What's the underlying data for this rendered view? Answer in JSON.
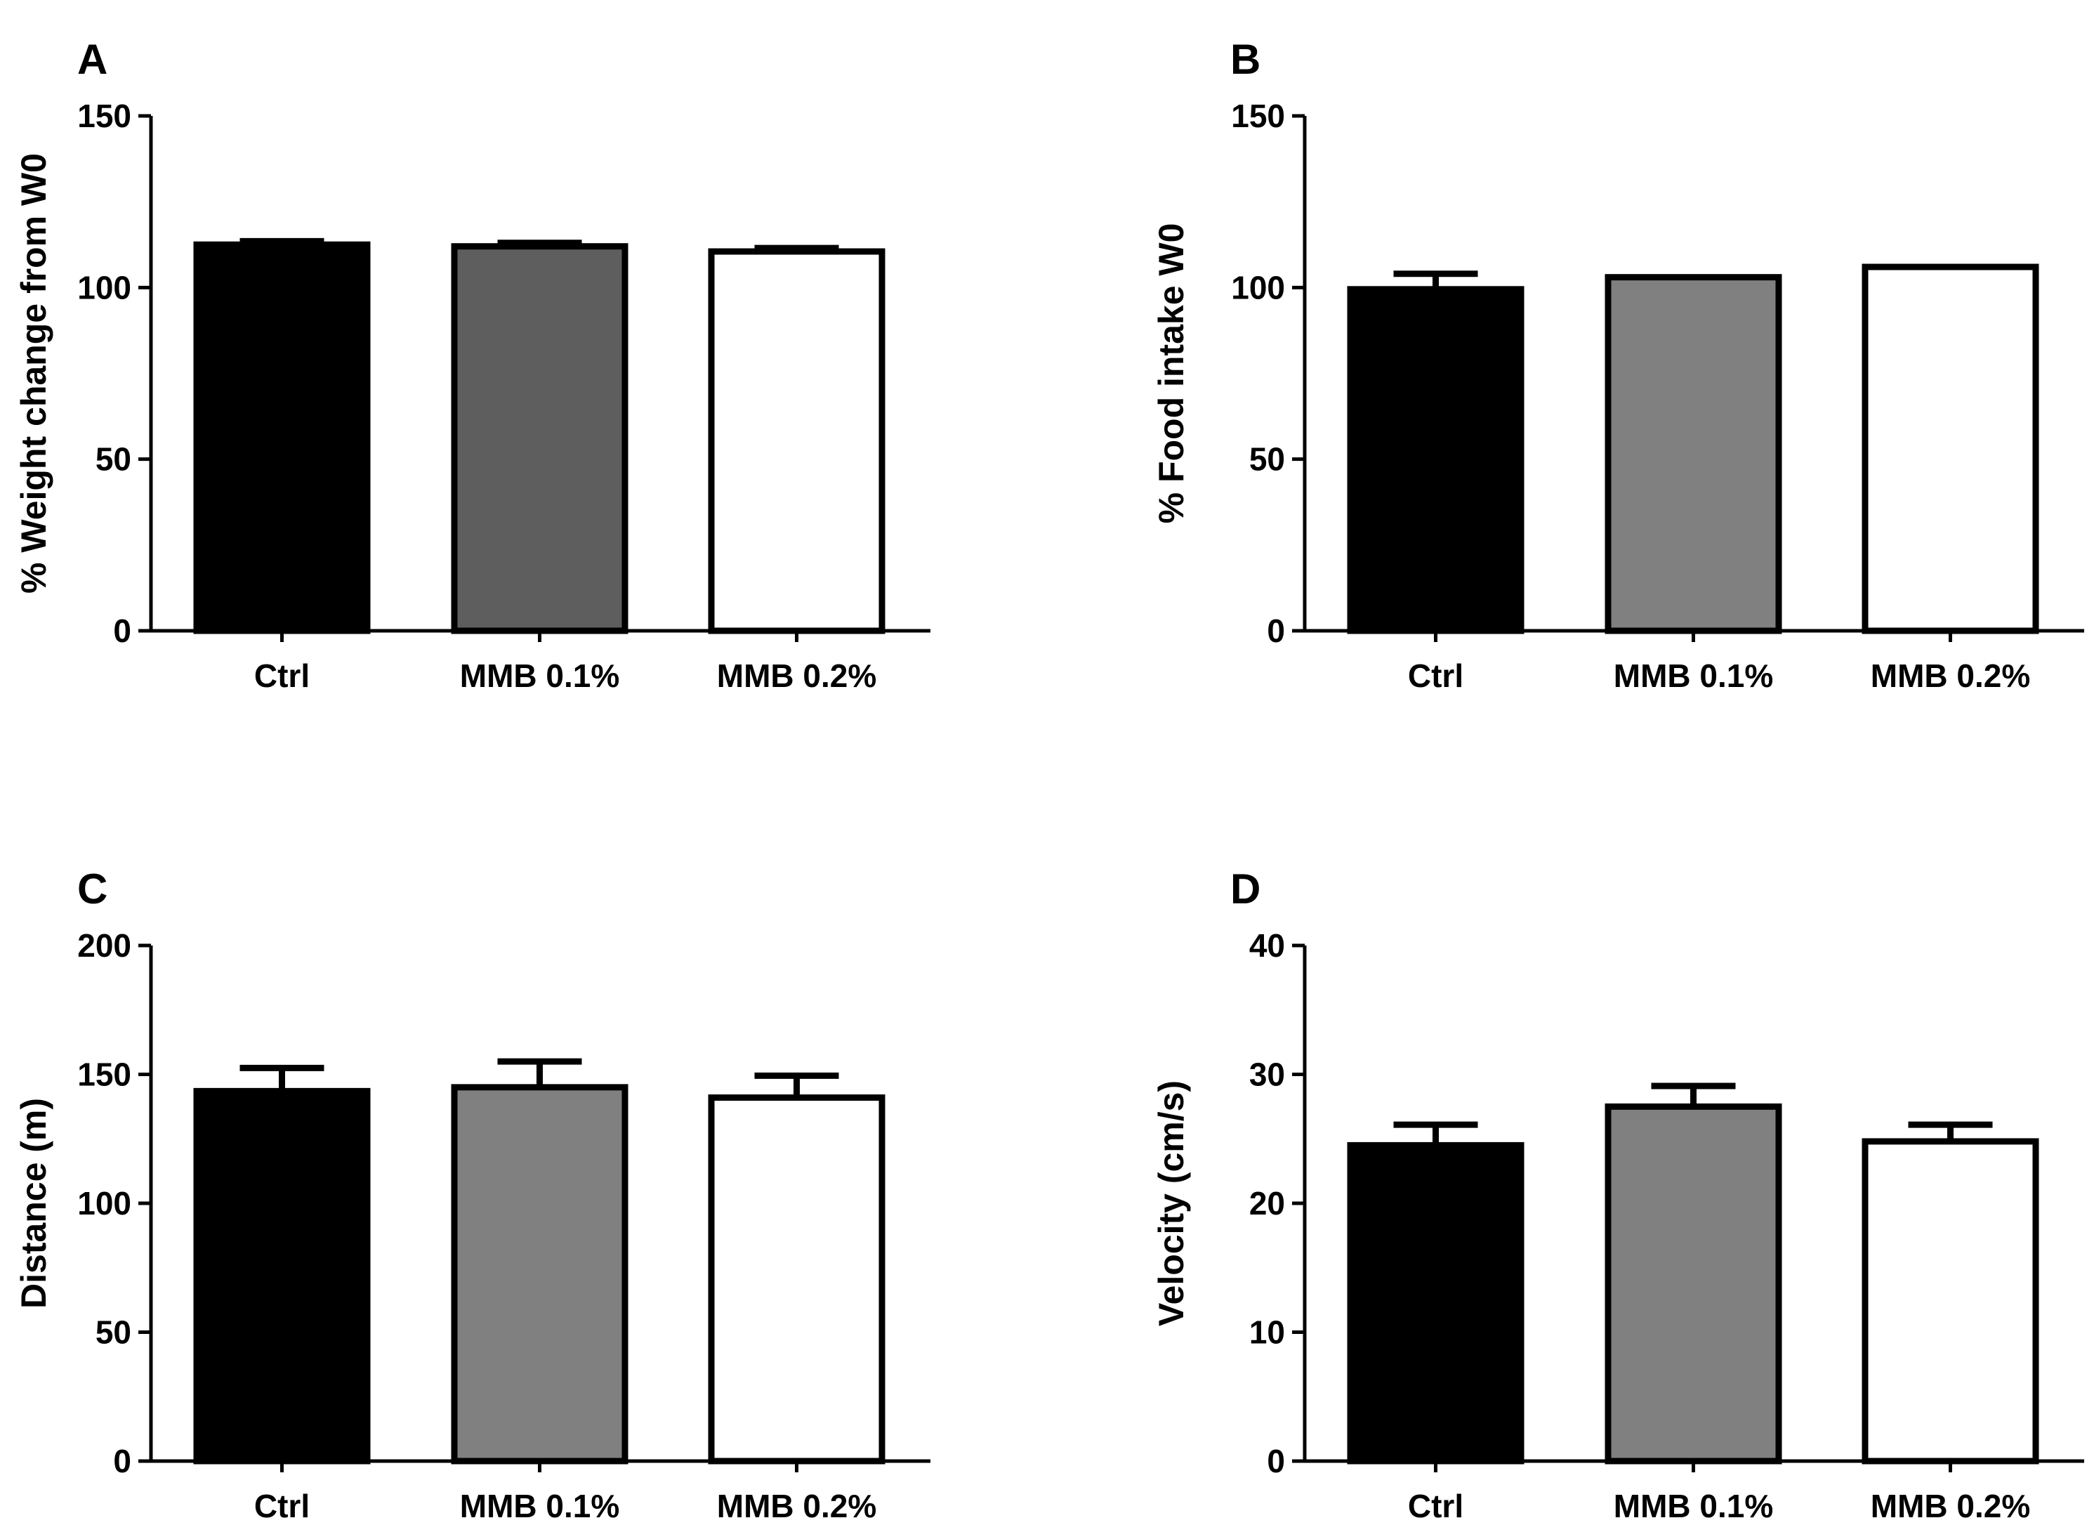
{
  "chart_data": [
    {
      "type": "bar",
      "panel": "A",
      "categories": [
        "Ctrl",
        "MMB 0.1%",
        "MMB 0.2%"
      ],
      "values": [
        112.5,
        112,
        110.5
      ],
      "errors": [
        1,
        1,
        1
      ],
      "colors": [
        "#000000",
        "#5e5e5e",
        "#ffffff"
      ],
      "ylabel": "% Weight change from W0",
      "ylim": [
        0,
        150
      ],
      "yticks": [
        0,
        50,
        100,
        150
      ]
    },
    {
      "type": "bar",
      "panel": "B",
      "categories": [
        "Ctrl",
        "MMB 0.1%",
        "MMB 0.2%"
      ],
      "values": [
        99.5,
        103,
        106
      ],
      "errors": [
        4.5,
        0,
        0
      ],
      "colors": [
        "#000000",
        "#808080",
        "#ffffff"
      ],
      "ylabel": "%  Food intake W0",
      "ylim": [
        0,
        150
      ],
      "yticks": [
        0,
        50,
        100,
        150
      ]
    },
    {
      "type": "bar",
      "panel": "C",
      "categories": [
        "Ctrl",
        "MMB 0.1%",
        "MMB 0.2%"
      ],
      "values": [
        143.5,
        145,
        141
      ],
      "errors": [
        9,
        10,
        8.5
      ],
      "colors": [
        "#000000",
        "#808080",
        "#ffffff"
      ],
      "ylabel": "Distance (m)",
      "ylim": [
        0,
        200
      ],
      "yticks": [
        0,
        50,
        100,
        150,
        200
      ]
    },
    {
      "type": "bar",
      "panel": "D",
      "categories": [
        "Ctrl",
        "MMB 0.1%",
        "MMB 0.2%"
      ],
      "values": [
        24.5,
        27.5,
        24.8
      ],
      "errors": [
        1.6,
        1.6,
        1.3
      ],
      "colors": [
        "#000000",
        "#808080",
        "#ffffff"
      ],
      "ylabel": "Velocity (cm/s)",
      "ylim": [
        0,
        40
      ],
      "yticks": [
        0,
        10,
        20,
        30,
        40
      ]
    }
  ]
}
